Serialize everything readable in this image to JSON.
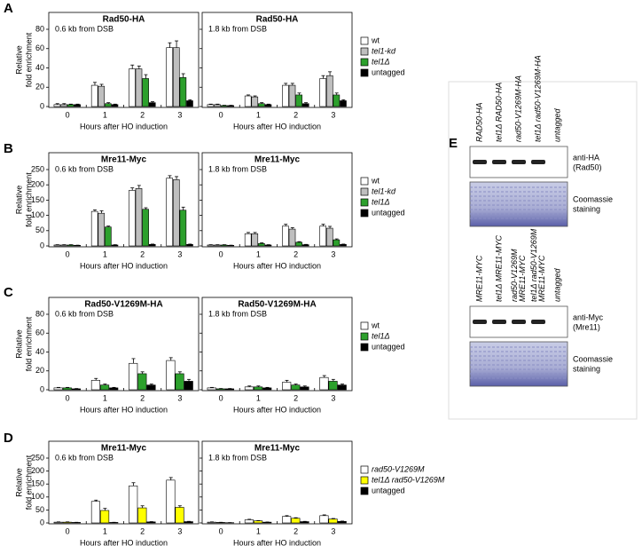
{
  "panel_labels": [
    "A",
    "B",
    "C",
    "D",
    "E"
  ],
  "chart_data": [
    {
      "type": "bar",
      "title": "Rad50-HA",
      "annotation": "0.6 kb from DSB",
      "ylabel": [
        "Relative",
        "fold enrichment"
      ],
      "xlabel": "Hours after HO induction",
      "categories": [
        "0",
        "1",
        "2",
        "3"
      ],
      "ylim": [
        0,
        80
      ],
      "yticks": [
        0,
        20,
        40,
        60,
        80
      ],
      "legend": false,
      "series": [
        {
          "name": "wt",
          "color": "#ffffff",
          "italic": false,
          "values": [
            2,
            22,
            39,
            61
          ],
          "errors": [
            1,
            3,
            4,
            5
          ]
        },
        {
          "name": "tel1-kd",
          "color": "#bfbfbf",
          "italic": true,
          "values": [
            2,
            21,
            39,
            61
          ],
          "errors": [
            1,
            2,
            3,
            7
          ]
        },
        {
          "name": "tel1Δ",
          "color": "#2ca02c",
          "italic": true,
          "values": [
            2,
            3,
            29,
            30
          ],
          "errors": [
            0.5,
            1,
            4,
            4
          ]
        },
        {
          "name": "untagged",
          "color": "#000000",
          "italic": false,
          "values": [
            2,
            2,
            4,
            6
          ],
          "errors": [
            0.5,
            0.5,
            1,
            1
          ]
        }
      ]
    },
    {
      "type": "bar",
      "title": "Rad50-HA",
      "annotation": "1.8 kb from DSB",
      "xlabel": "Hours after HO induction",
      "categories": [
        "0",
        "1",
        "2",
        "3"
      ],
      "ylim": [
        0,
        80
      ],
      "yticks": [
        0,
        20,
        40,
        60,
        80
      ],
      "legend": true,
      "series": [
        {
          "name": "wt",
          "color": "#ffffff",
          "italic": false,
          "values": [
            2,
            11,
            22,
            29
          ],
          "errors": [
            0.5,
            1,
            2,
            3
          ]
        },
        {
          "name": "tel1-kd",
          "color": "#bfbfbf",
          "italic": true,
          "values": [
            2,
            10,
            22,
            32
          ],
          "errors": [
            0.5,
            1,
            2,
            4
          ]
        },
        {
          "name": "tel1Δ",
          "color": "#2ca02c",
          "italic": true,
          "values": [
            1,
            3,
            12,
            12
          ],
          "errors": [
            0.3,
            1,
            2,
            2
          ]
        },
        {
          "name": "untagged",
          "color": "#000000",
          "italic": false,
          "values": [
            1,
            2,
            3,
            6
          ],
          "errors": [
            0.3,
            0.5,
            1,
            1
          ]
        }
      ]
    },
    {
      "type": "bar",
      "title": "Mre11-Myc",
      "annotation": "0.6 kb from DSB",
      "ylabel": [
        "Relative",
        "fold enrichment"
      ],
      "xlabel": "Hours after HO induction",
      "categories": [
        "0",
        "1",
        "2",
        "3"
      ],
      "ylim": [
        0,
        250
      ],
      "yticks": [
        0,
        50,
        100,
        150,
        200,
        250
      ],
      "legend": false,
      "series": [
        {
          "name": "wt",
          "color": "#ffffff",
          "italic": false,
          "values": [
            3,
            113,
            182,
            222
          ],
          "errors": [
            1,
            5,
            8,
            8
          ]
        },
        {
          "name": "tel1-kd",
          "color": "#bfbfbf",
          "italic": true,
          "values": [
            3,
            107,
            188,
            217
          ],
          "errors": [
            1,
            8,
            10,
            10
          ]
        },
        {
          "name": "tel1Δ",
          "color": "#2ca02c",
          "italic": true,
          "values": [
            3,
            62,
            120,
            117
          ],
          "errors": [
            1,
            3,
            5,
            10
          ]
        },
        {
          "name": "untagged",
          "color": "#000000",
          "italic": false,
          "values": [
            2,
            3,
            5,
            5
          ],
          "errors": [
            0.5,
            1,
            1,
            1
          ]
        }
      ]
    },
    {
      "type": "bar",
      "title": "Mre11-Myc",
      "annotation": "1.8 kb from DSB",
      "xlabel": "Hours after HO induction",
      "categories": [
        "0",
        "1",
        "2",
        "3"
      ],
      "ylim": [
        0,
        250
      ],
      "yticks": [
        0,
        50,
        100,
        150,
        200,
        250
      ],
      "legend": true,
      "series": [
        {
          "name": "wt",
          "color": "#ffffff",
          "italic": false,
          "values": [
            3,
            40,
            65,
            65
          ],
          "errors": [
            1,
            4,
            6,
            6
          ]
        },
        {
          "name": "tel1-kd",
          "color": "#bfbfbf",
          "italic": true,
          "values": [
            3,
            40,
            55,
            58
          ],
          "errors": [
            1,
            4,
            5,
            6
          ]
        },
        {
          "name": "tel1Δ",
          "color": "#2ca02c",
          "italic": true,
          "values": [
            3,
            8,
            12,
            20
          ],
          "errors": [
            1,
            2,
            2,
            3
          ]
        },
        {
          "name": "untagged",
          "color": "#000000",
          "italic": false,
          "values": [
            2,
            3,
            4,
            5
          ],
          "errors": [
            0.5,
            1,
            1,
            1
          ]
        }
      ]
    },
    {
      "type": "bar",
      "title": "Rad50-V1269M-HA",
      "annotation": "0.6 kb from DSB",
      "ylabel": [
        "Relative",
        "fold enrichment"
      ],
      "xlabel": "Hours after HO induction",
      "categories": [
        "0",
        "1",
        "2",
        "3"
      ],
      "ylim": [
        0,
        80
      ],
      "yticks": [
        0,
        20,
        40,
        60,
        80
      ],
      "legend": false,
      "series": [
        {
          "name": "wt",
          "color": "#ffffff",
          "italic": false,
          "values": [
            2,
            10,
            28,
            31
          ],
          "errors": [
            0.5,
            2,
            5,
            3
          ]
        },
        {
          "name": "tel1Δ",
          "color": "#2ca02c",
          "italic": true,
          "values": [
            2,
            5,
            17,
            17
          ],
          "errors": [
            0.5,
            1,
            2,
            2
          ]
        },
        {
          "name": "untagged",
          "color": "#000000",
          "italic": false,
          "values": [
            1,
            2,
            5,
            9
          ],
          "errors": [
            0.3,
            0.5,
            1,
            2
          ]
        }
      ]
    },
    {
      "type": "bar",
      "title": "Rad50-V1269M-HA",
      "annotation": "1.8 kb from DSB",
      "xlabel": "Hours after HO induction",
      "categories": [
        "0",
        "1",
        "2",
        "3"
      ],
      "ylim": [
        0,
        80
      ],
      "yticks": [
        0,
        20,
        40,
        60,
        80
      ],
      "legend": true,
      "series": [
        {
          "name": "wt",
          "color": "#ffffff",
          "italic": false,
          "values": [
            2,
            3,
            8,
            13
          ],
          "errors": [
            0.5,
            1,
            2,
            2
          ]
        },
        {
          "name": "tel1Δ",
          "color": "#2ca02c",
          "italic": true,
          "values": [
            1,
            3,
            5,
            9
          ],
          "errors": [
            0.3,
            1,
            1,
            2
          ]
        },
        {
          "name": "untagged",
          "color": "#000000",
          "italic": false,
          "values": [
            1,
            2,
            3,
            5
          ],
          "errors": [
            0.3,
            0.5,
            1,
            1
          ]
        }
      ]
    },
    {
      "type": "bar",
      "title": "Mre11-Myc",
      "annotation": "0.6 kb from DSB",
      "ylabel": [
        "Relative",
        "fold enrichment"
      ],
      "xlabel": "Hours after HO induction",
      "categories": [
        "0",
        "1",
        "2",
        "3"
      ],
      "ylim": [
        0,
        250
      ],
      "yticks": [
        0,
        50,
        100,
        150,
        200,
        250
      ],
      "legend": false,
      "series": [
        {
          "name": "rad50-V1269M",
          "color": "#ffffff",
          "italic": true,
          "values": [
            3,
            83,
            143,
            165
          ],
          "errors": [
            1,
            5,
            12,
            10
          ]
        },
        {
          "name": "tel1Δ rad50-V1269M",
          "color": "#ffff00",
          "italic": true,
          "values": [
            3,
            48,
            58,
            60
          ],
          "errors": [
            1,
            8,
            8,
            6
          ]
        },
        {
          "name": "untagged",
          "color": "#000000",
          "italic": false,
          "values": [
            2,
            2,
            4,
            5
          ],
          "errors": [
            0.5,
            0.5,
            1,
            1
          ]
        }
      ]
    },
    {
      "type": "bar",
      "title": "Mre11-Myc",
      "annotation": "1.8 kb from DSB",
      "xlabel": "Hours after HO induction",
      "categories": [
        "0",
        "1",
        "2",
        "3"
      ],
      "ylim": [
        0,
        250
      ],
      "yticks": [
        0,
        50,
        100,
        150,
        200,
        250
      ],
      "legend": true,
      "series": [
        {
          "name": "rad50-V1269M",
          "color": "#ffffff",
          "italic": true,
          "values": [
            3,
            12,
            25,
            28
          ],
          "errors": [
            1,
            2,
            3,
            3
          ]
        },
        {
          "name": "tel1Δ rad50-V1269M",
          "color": "#ffff00",
          "italic": true,
          "values": [
            2,
            8,
            18,
            15
          ],
          "errors": [
            0.5,
            1,
            2,
            2
          ]
        },
        {
          "name": "untagged",
          "color": "#000000",
          "italic": false,
          "values": [
            1,
            3,
            5,
            6
          ],
          "errors": [
            0.3,
            0.5,
            1,
            1
          ]
        }
      ]
    }
  ],
  "blots": [
    {
      "lanes": [
        [
          "RAD50-HA"
        ],
        [
          "tel1Δ RAD50-HA"
        ],
        [
          "rad50-V1269M-HA"
        ],
        [
          "tel1Δ rad50-V1269M-HA"
        ],
        [
          "untagged"
        ]
      ],
      "antibody": [
        "anti-HA",
        "(Rad50)"
      ],
      "stain": [
        "Coomassie",
        "staining"
      ]
    },
    {
      "lanes": [
        [
          "MRE11-MYC"
        ],
        [
          "tel1Δ MRE11-MYC"
        ],
        [
          "rad50-V1269M",
          "MRE11-MYC"
        ],
        [
          "tel1Δ rad50-V1269M",
          "MRE11-MYC"
        ],
        [
          "untagged"
        ]
      ],
      "antibody": [
        "anti-Myc",
        "(Mre11)"
      ],
      "stain": [
        "Coomassie",
        "staining"
      ]
    }
  ]
}
